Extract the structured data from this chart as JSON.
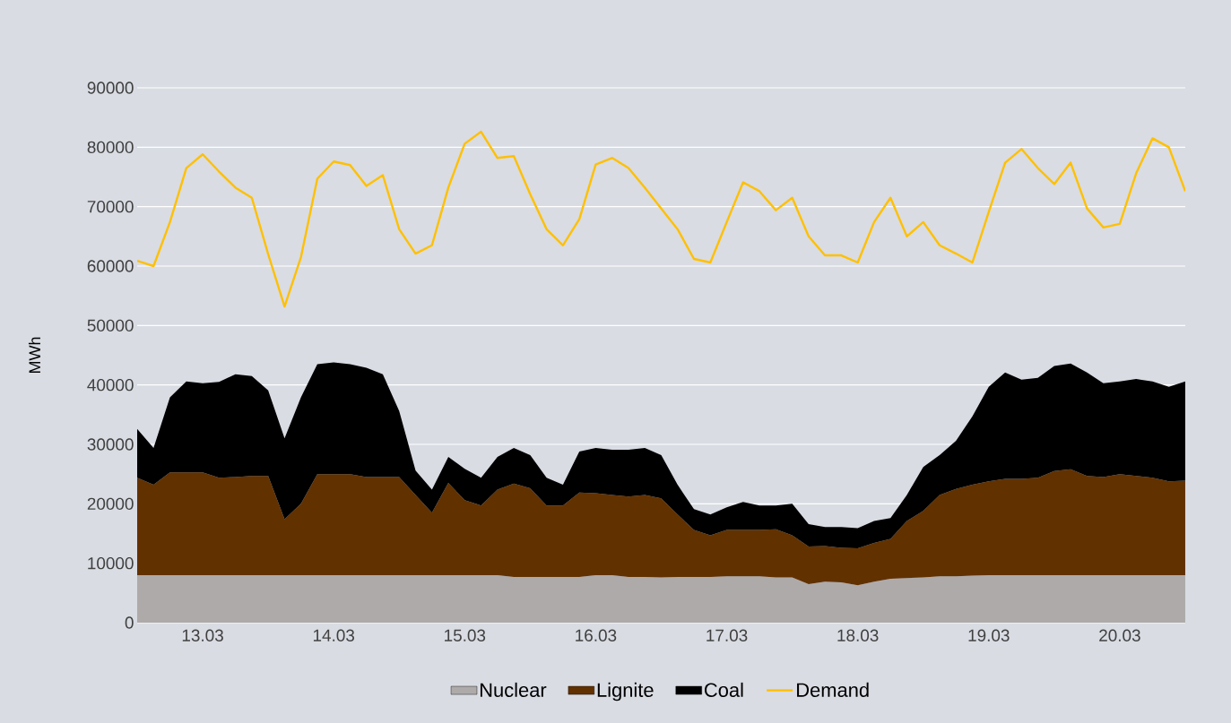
{
  "chart_data": {
    "type": "area",
    "stacked": true,
    "ylabel": "MWh",
    "categories": [
      null,
      null,
      null,
      null,
      "13.03",
      null,
      null,
      null,
      null,
      null,
      null,
      null,
      "14.03",
      null,
      null,
      null,
      null,
      null,
      null,
      null,
      "15.03",
      null,
      null,
      null,
      null,
      null,
      null,
      null,
      "16.03",
      null,
      null,
      null,
      null,
      null,
      null,
      null,
      "17.03",
      null,
      null,
      null,
      null,
      null,
      null,
      null,
      "18.03",
      null,
      null,
      null,
      null,
      null,
      null,
      null,
      "19.03",
      null,
      null,
      null,
      null,
      null,
      null,
      null,
      "20.03",
      null,
      null,
      null,
      null
    ],
    "series": [
      {
        "name": "Nuclear",
        "color": "#aeaaaa",
        "values": [
          8000,
          8000,
          8000,
          8000,
          8000,
          8000,
          8000,
          8000,
          8000,
          8000,
          8000,
          8000,
          8000,
          8000,
          8000,
          8000,
          8000,
          8000,
          8000,
          8000,
          8000,
          8000,
          8000,
          7700,
          7700,
          7700,
          7700,
          7700,
          8000,
          8000,
          7700,
          7700,
          7600,
          7700,
          7700,
          7700,
          7800,
          7800,
          7800,
          7600,
          7600,
          6500,
          6900,
          6800,
          6300,
          6900,
          7400,
          7500,
          7600,
          7800,
          7800,
          7900,
          8000,
          8000,
          8000,
          8000,
          8000,
          8000,
          8000,
          8000,
          8000,
          8000,
          8000,
          8000,
          8000
        ]
      },
      {
        "name": "Lignite",
        "color": "#623100",
        "values": [
          16400,
          15200,
          17300,
          17300,
          17300,
          16400,
          16500,
          16700,
          16700,
          9400,
          12000,
          17000,
          17000,
          17000,
          16500,
          16500,
          16500,
          13500,
          10500,
          15500,
          12600,
          11700,
          14400,
          15700,
          14900,
          12000,
          12000,
          14200,
          13800,
          13500,
          13500,
          13800,
          13300,
          10500,
          7900,
          7000,
          7800,
          7800,
          7800,
          8100,
          7100,
          6300,
          6000,
          5800,
          6200,
          6500,
          6700,
          9600,
          11200,
          13700,
          14700,
          15300,
          15800,
          16200,
          16200,
          16400,
          17500,
          17800,
          16700,
          16500,
          17000,
          16700,
          16400,
          15800,
          15900
        ]
      },
      {
        "name": "Coal",
        "color": "#000000",
        "values": [
          8200,
          6200,
          12600,
          15300,
          15000,
          16100,
          17300,
          16800,
          14400,
          13600,
          17900,
          18500,
          18800,
          18500,
          18400,
          17300,
          11100,
          4100,
          3900,
          4400,
          5300,
          4700,
          5500,
          6000,
          5600,
          4700,
          3500,
          6900,
          7600,
          7600,
          7900,
          7900,
          7300,
          5000,
          3500,
          3500,
          3800,
          4700,
          4100,
          4000,
          5300,
          3800,
          3200,
          3500,
          3400,
          3700,
          3500,
          4400,
          7400,
          6700,
          8100,
          11500,
          15900,
          17900,
          16700,
          16800,
          17700,
          17800,
          17400,
          15800,
          15600,
          16300,
          16200,
          15900,
          16700
        ]
      },
      {
        "name": "Demand",
        "type": "line",
        "color": "#ffc000",
        "values": [
          60900,
          60000,
          67400,
          76500,
          78800,
          75900,
          73200,
          71500,
          62000,
          53200,
          61500,
          74700,
          77600,
          77000,
          73500,
          75300,
          66200,
          62100,
          63500,
          73200,
          80600,
          82600,
          78200,
          78500,
          72100,
          66200,
          63500,
          67900,
          77100,
          78200,
          76500,
          73200,
          69700,
          66200,
          61200,
          60600,
          67400,
          74100,
          72600,
          69400,
          71500,
          65000,
          61800,
          61800,
          60600,
          67400,
          71500,
          65000,
          67400,
          63500,
          62100,
          60600,
          69100,
          77400,
          79700,
          76500,
          73800,
          77400,
          69700,
          66500,
          67100,
          75600,
          81500,
          80000,
          72600
        ]
      }
    ],
    "ylim": [
      0,
      90000
    ],
    "yticks": [
      0,
      10000,
      20000,
      30000,
      40000,
      50000,
      60000,
      70000,
      80000,
      90000
    ],
    "grid": "y",
    "legend": "bottom"
  }
}
